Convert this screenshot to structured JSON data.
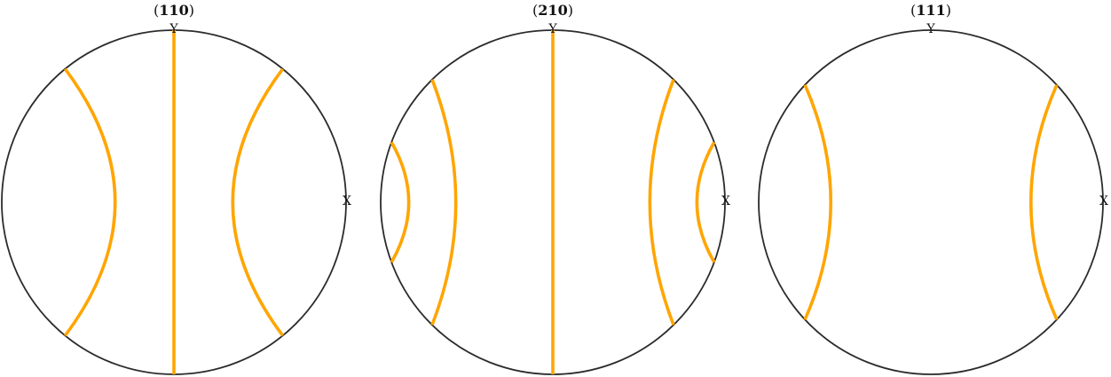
{
  "figure": {
    "description_label": "pole figures",
    "colors": {
      "trace": "#FFA500",
      "outline": "#2b2b2b",
      "text": "#111111"
    },
    "panels": [
      {
        "name": "pole-figure-110",
        "title": {
          "open": "(",
          "miller": "110",
          "close": ")"
        },
        "axis_top": "Y",
        "axis_right": "X",
        "traces": [
          {
            "type": "arc",
            "extent": 1.0,
            "bulge": 0.55,
            "side": "left"
          },
          {
            "type": "line",
            "offset": 0.0
          },
          {
            "type": "arc",
            "extent": 1.0,
            "bulge": 0.55,
            "side": "right"
          }
        ]
      },
      {
        "name": "pole-figure-210",
        "title": {
          "open": "(",
          "miller": "210",
          "close": ")"
        },
        "axis_top": "Y",
        "axis_right": "X",
        "traces": [
          {
            "type": "arc",
            "extent": 0.45,
            "bulge": 0.45,
            "side": "left"
          },
          {
            "type": "arc",
            "extent": 0.92,
            "bulge": 0.3,
            "side": "left"
          },
          {
            "type": "line",
            "offset": 0.0
          },
          {
            "type": "arc",
            "extent": 0.92,
            "bulge": 0.3,
            "side": "right"
          },
          {
            "type": "arc",
            "extent": 0.45,
            "bulge": 0.45,
            "side": "right"
          }
        ]
      },
      {
        "name": "pole-figure-111",
        "title": {
          "open": "(",
          "miller": "111",
          "close": ")"
        },
        "axis_top": "Y",
        "axis_right": "X",
        "traces": [
          {
            "type": "arc",
            "extent": 0.88,
            "bulge": 0.35,
            "side": "left"
          },
          {
            "type": "arc",
            "extent": 0.88,
            "bulge": 0.35,
            "side": "right"
          }
        ]
      }
    ]
  }
}
